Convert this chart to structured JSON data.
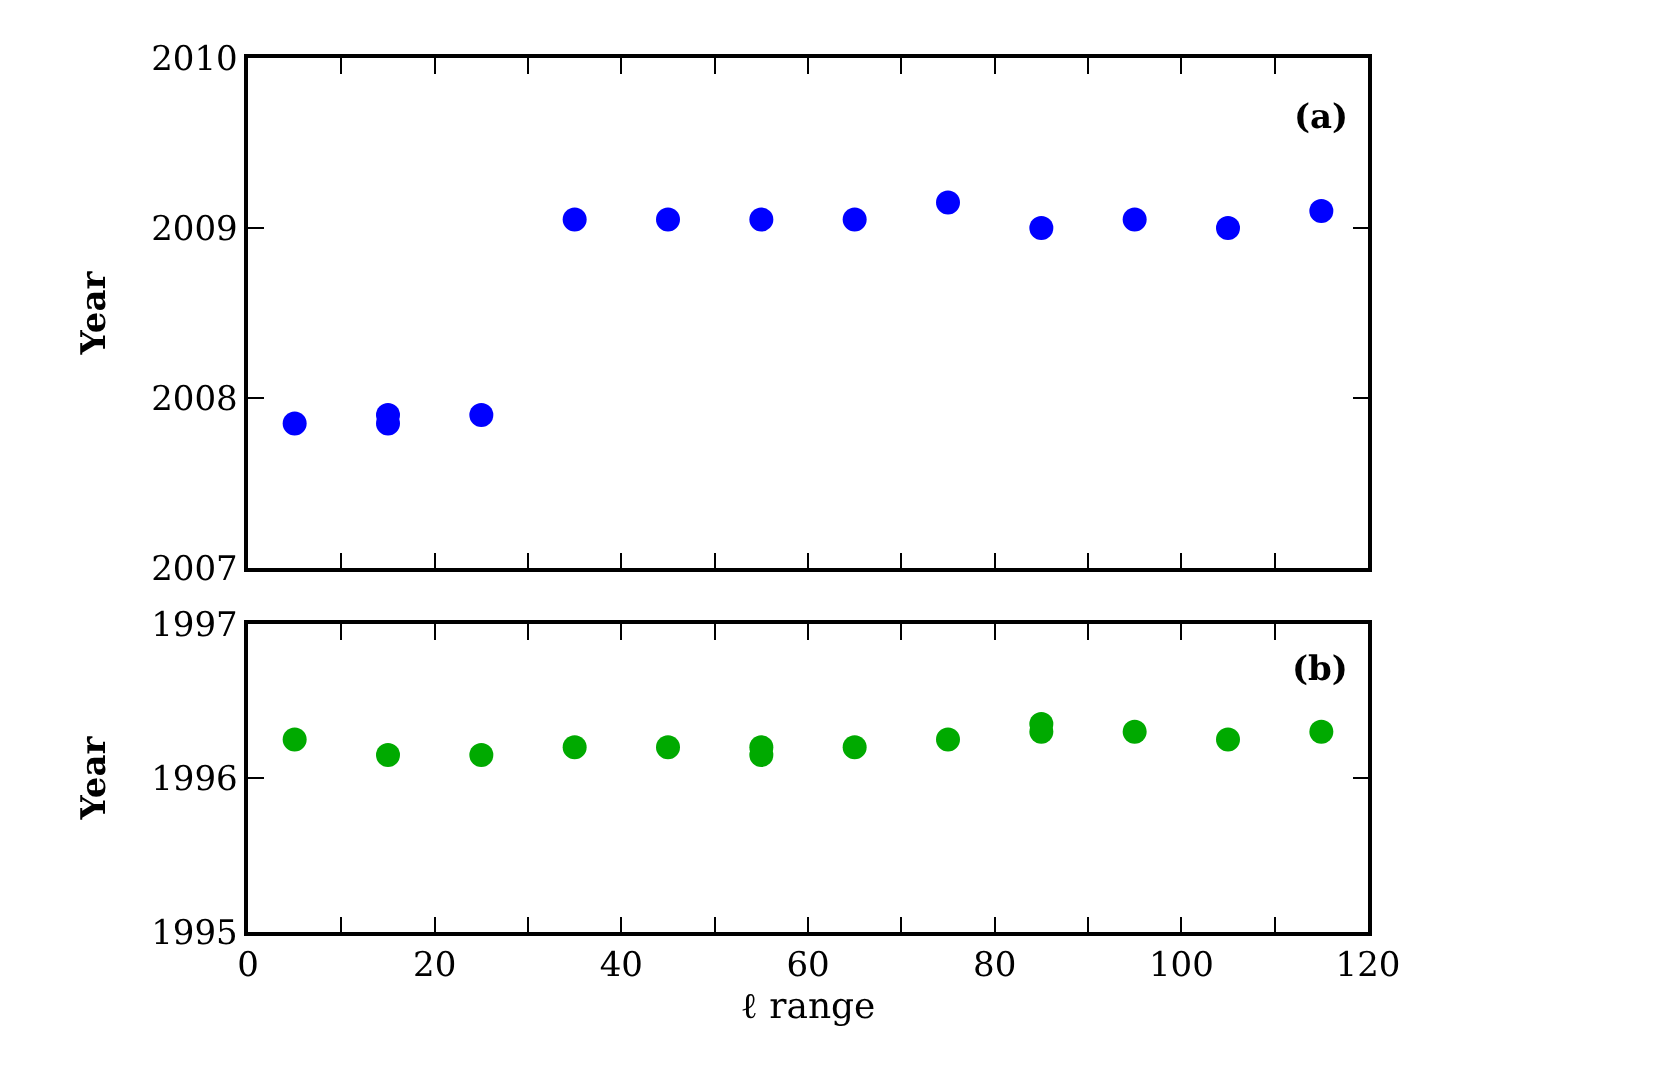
{
  "chart_data": [
    {
      "type": "scatter",
      "ylabel": "Year",
      "annotations": [
        "(a)"
      ],
      "marker": "circle",
      "tick_labels": "y",
      "xlim": [
        0,
        120
      ],
      "xticks": [
        0,
        {
          "value": 10,
          "label": null
        },
        20,
        {
          "value": 30,
          "label": null
        },
        40,
        {
          "value": 50,
          "label": null
        },
        60,
        {
          "value": 70,
          "label": null
        },
        80,
        {
          "value": 90,
          "label": null
        },
        100,
        {
          "value": 110,
          "label": null
        },
        120
      ],
      "ylim": [
        2007,
        2010
      ],
      "yticks": [
        2007,
        2008,
        2009,
        2010
      ],
      "series": [
        {
          "color": "#0000ff",
          "x": [
            5,
            15,
            15,
            25,
            35,
            45,
            55,
            65,
            75,
            85,
            95,
            105,
            115
          ],
          "values": [
            2007.85,
            2007.85,
            2007.9,
            2007.9,
            2009.05,
            2009.05,
            2009.05,
            2009.05,
            2009.15,
            2009.0,
            2009.05,
            2009.0,
            2009.1
          ]
        }
      ]
    },
    {
      "type": "scatter",
      "ylabel": "Year",
      "xlabel": "ℓ range",
      "annotations": [
        "(b)"
      ],
      "marker": "circle",
      "xlim": [
        0,
        120
      ],
      "xticks": [
        0,
        {
          "value": 10,
          "label": null
        },
        20,
        {
          "value": 30,
          "label": null
        },
        40,
        {
          "value": 50,
          "label": null
        },
        60,
        {
          "value": 70,
          "label": null
        },
        80,
        {
          "value": 90,
          "label": null
        },
        100,
        {
          "value": 110,
          "label": null
        },
        120
      ],
      "ylim": [
        1995,
        1997
      ],
      "yticks": [
        1995,
        1996,
        1997
      ],
      "series": [
        {
          "color": "#00aa00",
          "x": [
            5,
            15,
            25,
            35,
            45,
            55,
            55,
            65,
            75,
            85,
            85,
            95,
            105,
            115
          ],
          "values": [
            1996.25,
            1996.15,
            1996.15,
            1996.2,
            1996.2,
            1996.2,
            1996.15,
            1996.2,
            1996.25,
            1996.35,
            1996.3,
            1996.3,
            1996.25,
            1996.3
          ]
        }
      ]
    }
  ]
}
